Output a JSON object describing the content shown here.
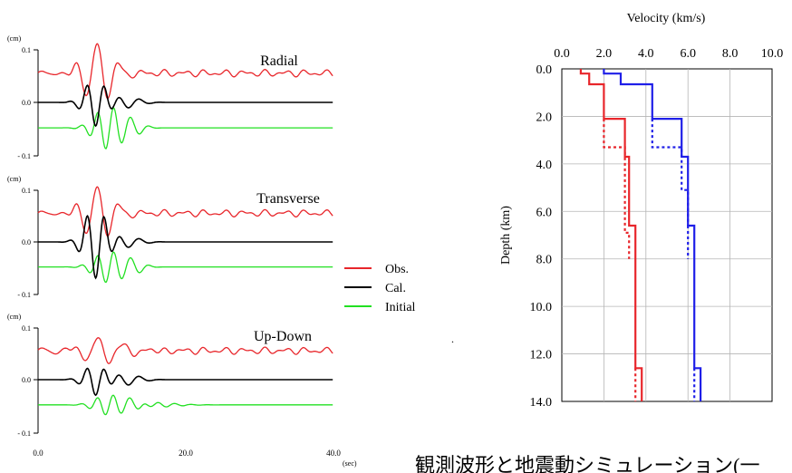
{
  "chart_data": [
    {
      "type": "line",
      "panels": [
        {
          "title": "Radial",
          "unit": "(cm)",
          "yticks": [
            "0.1",
            "0.0",
            "- 0.1"
          ]
        },
        {
          "title": "Transverse",
          "unit": "(cm)",
          "yticks": [
            "0.1",
            "0.0",
            "- 0.1"
          ]
        },
        {
          "title": "Up-Down",
          "unit": "(cm)",
          "yticks": [
            "0.1",
            "0.0",
            "- 0.1"
          ]
        }
      ],
      "xticks": [
        "0.0",
        "20.0",
        "40.0"
      ],
      "xunit": "(sec)",
      "xlim": [
        0,
        40
      ],
      "ylim": [
        -0.1,
        0.1
      ],
      "legend": {
        "position": "right",
        "entries": [
          {
            "name": "Obs.",
            "color": "#e8262b"
          },
          {
            "name": "Cal.",
            "color": "#000000"
          },
          {
            "name": "Initial",
            "color": "#22e022"
          }
        ]
      },
      "offsets": {
        "obs": 0.055,
        "cal": 0.0,
        "initial": -0.048
      }
    },
    {
      "type": "line",
      "xlabel": "Velocity (km/s)",
      "ylabel": "Depth (km)",
      "xticks": [
        "0.0",
        "2.0",
        "4.0",
        "6.0",
        "8.0",
        "10.0"
      ],
      "yticks": [
        "0.0",
        "2.0",
        "4.0",
        "6.0",
        "8.0",
        "10.0",
        "12.0",
        "14.0"
      ],
      "xlim": [
        0,
        10
      ],
      "ylim": [
        0,
        14
      ],
      "grid": true,
      "series": [
        {
          "color": "#e8262b",
          "style": "solid",
          "points": [
            [
              0.9,
              0
            ],
            [
              0.9,
              0.2
            ],
            [
              1.3,
              0.2
            ],
            [
              1.3,
              0.65
            ],
            [
              2.0,
              0.65
            ],
            [
              2.0,
              2.1
            ],
            [
              3.0,
              2.1
            ],
            [
              3.0,
              3.7
            ],
            [
              3.2,
              3.7
            ],
            [
              3.2,
              6.6
            ],
            [
              3.5,
              6.6
            ],
            [
              3.5,
              12.6
            ],
            [
              3.8,
              12.6
            ],
            [
              3.8,
              14
            ]
          ]
        },
        {
          "color": "#e8262b",
          "style": "dotted",
          "points": [
            [
              2.0,
              2.1
            ],
            [
              2.0,
              3.3
            ],
            [
              3.0,
              3.3
            ],
            [
              3.0,
              6.9
            ],
            [
              3.2,
              6.9
            ],
            [
              3.2,
              8.0
            ]
          ]
        },
        {
          "color": "#e8262b",
          "style": "dotted",
          "points": [
            [
              3.5,
              12.6
            ],
            [
              3.5,
              14
            ]
          ]
        },
        {
          "color": "#1f1fe8",
          "style": "solid",
          "points": [
            [
              2.0,
              0
            ],
            [
              2.0,
              0.2
            ],
            [
              2.8,
              0.2
            ],
            [
              2.8,
              0.65
            ],
            [
              4.3,
              0.65
            ],
            [
              4.3,
              2.1
            ],
            [
              5.7,
              2.1
            ],
            [
              5.7,
              3.7
            ],
            [
              6.0,
              3.7
            ],
            [
              6.0,
              6.6
            ],
            [
              6.3,
              6.6
            ],
            [
              6.3,
              12.6
            ],
            [
              6.6,
              12.6
            ],
            [
              6.6,
              14
            ]
          ]
        },
        {
          "color": "#1f1fe8",
          "style": "dotted",
          "points": [
            [
              4.3,
              2.1
            ],
            [
              4.3,
              3.3
            ],
            [
              5.7,
              3.3
            ],
            [
              5.7,
              5.1
            ],
            [
              6.0,
              5.1
            ],
            [
              6.0,
              6.6
            ]
          ]
        },
        {
          "color": "#1f1fe8",
          "style": "dotted",
          "points": [
            [
              6.0,
              6.6
            ],
            [
              6.0,
              8.0
            ]
          ]
        },
        {
          "color": "#1f1fe8",
          "style": "dotted",
          "points": [
            [
              6.3,
              12.6
            ],
            [
              6.3,
              14
            ]
          ]
        }
      ]
    }
  ],
  "caption": "観測波形と地震動シミュレーション(一",
  "stray_mark": "."
}
